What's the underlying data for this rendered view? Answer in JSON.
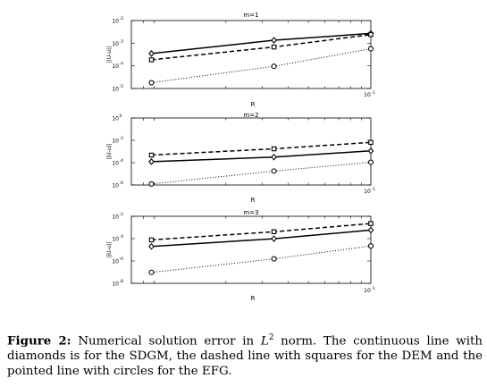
{
  "chart_data": [
    {
      "type": "line",
      "title": "m=1",
      "xlabel": "R",
      "ylabel": "||U-u||",
      "xscale": "log",
      "yscale": "log",
      "xlim": [
        0.007,
        0.1
      ],
      "ylim": [
        1e-05,
        0.01
      ],
      "xtick_labels": [
        "10",
        "-1"
      ],
      "ytick_labels": [
        {
          "base": "10",
          "exp": "-2"
        },
        {
          "base": "10",
          "exp": "-3"
        },
        {
          "base": "10",
          "exp": "-4"
        },
        {
          "base": "10",
          "exp": "-5"
        }
      ],
      "grid": false,
      "x": [
        0.00875,
        0.0341,
        0.1
      ],
      "series": [
        {
          "style": "solid",
          "marker": "diamond",
          "values": [
            0.00035,
            0.00135,
            0.0027
          ]
        },
        {
          "style": "dashed",
          "marker": "square",
          "values": [
            0.000185,
            0.00068,
            0.0024
          ]
        },
        {
          "style": "dotted",
          "marker": "circle",
          "values": [
            1.8e-05,
            9.5e-05,
            0.00057
          ]
        }
      ]
    },
    {
      "type": "line",
      "title": "m=2",
      "xlabel": "R",
      "ylabel": "||U-u||",
      "xscale": "log",
      "yscale": "log",
      "xlim": [
        0.007,
        0.1
      ],
      "ylim": [
        1e-05,
        1
      ],
      "xtick_labels": [
        "10",
        "-1"
      ],
      "ytick_labels": [
        {
          "base": "10",
          "exp": "0"
        },
        {
          "base": "10",
          "exp": "-2"
        },
        {
          "base": "10",
          "exp": "-4"
        },
        {
          "base": "10",
          "exp": "-6"
        }
      ],
      "grid": false,
      "x": [
        0.00875,
        0.0341,
        0.1
      ],
      "series": [
        {
          "style": "solid",
          "marker": "diamond",
          "values": [
            0.00055,
            0.0012,
            0.0035
          ]
        },
        {
          "style": "dashed",
          "marker": "square",
          "values": [
            0.0017,
            0.005,
            0.0152
          ]
        },
        {
          "style": "dotted",
          "marker": "circle",
          "values": [
            1.2e-05,
            0.00011,
            0.0005
          ]
        }
      ]
    },
    {
      "type": "line",
      "title": "m=3",
      "xlabel": "R",
      "ylabel": "||U-u||",
      "xscale": "log",
      "yscale": "log",
      "xlim": [
        0.007,
        0.1
      ],
      "ylim": [
        1e-06,
        0.01
      ],
      "xtick_labels": [
        "10",
        "-1"
      ],
      "ytick_labels": [
        {
          "base": "10",
          "exp": "-2"
        },
        {
          "base": "10",
          "exp": "-4"
        },
        {
          "base": "10",
          "exp": "-6"
        },
        {
          "base": "10",
          "exp": "-8"
        }
      ],
      "grid": false,
      "x": [
        0.00875,
        0.0341,
        0.1
      ],
      "series": [
        {
          "style": "solid",
          "marker": "diamond",
          "values": [
            0.00016,
            0.00046,
            0.0015
          ]
        },
        {
          "style": "dashed",
          "marker": "square",
          "values": [
            0.00039,
            0.0012,
            0.0037
          ]
        },
        {
          "style": "dotted",
          "marker": "circle",
          "values": [
            4.5e-06,
            2.9e-05,
            0.00017
          ]
        }
      ]
    }
  ],
  "caption": {
    "label": "Figure 2:",
    "text_before": " Numerical solution error in ",
    "norm_symbol": "L",
    "norm_exp": "2",
    "text_after": " norm. The continuous line with diamonds is for the SDGM, the dashed line with squares for the DEM and the pointed line with circles for the EFG."
  }
}
